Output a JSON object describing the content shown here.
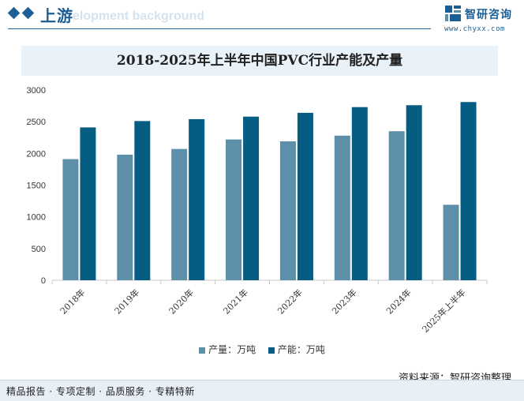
{
  "header": {
    "title": "上游",
    "subtitle_ghost": "elopment background",
    "logo_name": "智研咨询",
    "logo_url": "www.chyxx.com",
    "logo_icon": "chyxx-logo-icon"
  },
  "source_text": "资料来源：智研咨询整理",
  "footer_text": "精品报告 · 专项定制 · 品质服务 · 专精特新",
  "colors": {
    "production": "#5d8fa8",
    "capacity": "#065d82",
    "brand": "#1a5e95"
  },
  "chart_data": {
    "type": "bar",
    "title": "2018-2025年上半年中国PVC行业产能及产量",
    "categories": [
      "2018年",
      "2019年",
      "2020年",
      "2021年",
      "2022年",
      "2023年",
      "2024年",
      "2025年上半年"
    ],
    "series": [
      {
        "name": "产量：万吨",
        "values": [
          1910,
          1980,
          2070,
          2220,
          2190,
          2280,
          2350,
          1190
        ]
      },
      {
        "name": "产能：万吨",
        "values": [
          2410,
          2510,
          2540,
          2580,
          2640,
          2730,
          2760,
          2810
        ]
      }
    ],
    "y_ticks": [
      "0",
      "500",
      "1000",
      "1500",
      "2000",
      "2500",
      "3000"
    ],
    "ylim": [
      0,
      3000
    ],
    "grid": false,
    "legend_position": "bottom"
  }
}
